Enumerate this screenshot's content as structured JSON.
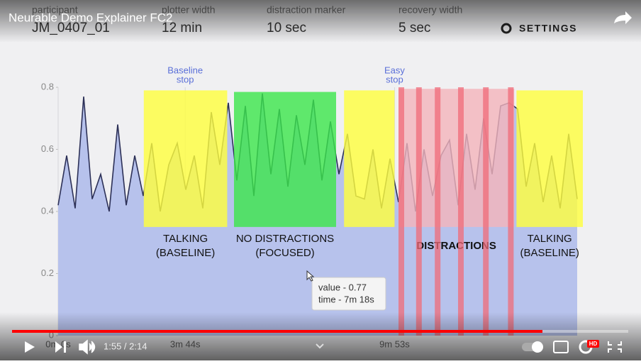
{
  "video_title": "Neurable Demo Explainer FC2",
  "header": [
    {
      "label": "participant",
      "value": "JM_0407_01"
    },
    {
      "label": "plotter width",
      "value": "12 min"
    },
    {
      "label": "distraction marker",
      "value": "10 sec"
    },
    {
      "label": "recovery width",
      "value": "5 sec"
    }
  ],
  "settings": "SETTINGS",
  "chart_data": {
    "type": "area",
    "x": [
      0,
      15,
      30,
      45,
      60,
      75,
      90,
      105,
      120,
      135,
      150,
      165,
      180,
      195,
      210,
      225,
      240,
      255,
      270,
      285,
      300,
      315,
      330,
      345,
      360,
      375,
      390,
      405,
      420,
      435,
      450,
      465,
      480,
      495,
      510,
      525,
      540,
      555,
      570,
      585,
      600,
      615,
      630,
      645,
      660,
      675,
      690,
      705,
      720,
      735,
      750,
      765,
      780,
      795,
      810,
      825,
      840,
      855,
      870,
      885,
      900,
      915
    ],
    "series": [
      {
        "name": null,
        "color": "#2c3057",
        "fill": "#b7c2ec",
        "values": [
          0.42,
          0.58,
          0.41,
          0.77,
          0.44,
          0.52,
          0.4,
          0.68,
          0.42,
          0.58,
          0.45,
          0.62,
          0.4,
          0.55,
          0.62,
          0.47,
          0.58,
          0.41,
          0.72,
          0.55,
          0.75,
          0.5,
          0.74,
          0.45,
          0.78,
          0.52,
          0.73,
          0.48,
          0.71,
          0.55,
          0.76,
          0.5,
          0.69,
          0.52,
          0.65,
          0.45,
          0.44,
          0.6,
          0.41,
          0.57,
          0.43,
          0.62,
          0.4,
          0.6,
          0.45,
          0.58,
          0.63,
          0.42,
          0.65,
          0.47,
          0.7,
          0.52,
          0.74,
          0.75,
          0.73,
          0.48,
          0.62,
          0.43,
          0.58,
          0.41,
          0.65,
          0.44
        ]
      }
    ],
    "xlim": [
      0,
      930
    ],
    "ylim": [
      0,
      0.8
    ],
    "yticks": [
      0,
      0.2,
      0.4,
      0.6,
      0.8
    ],
    "xticks": [
      {
        "value": 0,
        "label": "0m 0s"
      },
      {
        "value": 224,
        "label": "3m 44s"
      },
      {
        "value": 593,
        "label": "9m 53s"
      }
    ],
    "grid": true,
    "regions": [
      {
        "lines": [
          "TALKING",
          "(BASELINE)"
        ],
        "start": 151,
        "end": 298,
        "bottom": 0.35,
        "top": 0.79,
        "color": "#ffff3c"
      },
      {
        "lines": [
          "NO DISTRACTIONS",
          "(FOCUSED)"
        ],
        "start": 310,
        "end": 490,
        "bottom": 0.35,
        "top": 0.785,
        "color": "#3be64a"
      },
      {
        "lines": [],
        "start": 504,
        "end": 593,
        "bottom": 0.35,
        "top": 0.79,
        "color": "#ffff3c"
      },
      {
        "lines": [
          "DISTRACTIONS"
        ],
        "start": 600,
        "end": 804,
        "bottom": 0.35,
        "top": 0.795,
        "color": "#f4b4ba",
        "style": "bold"
      },
      {
        "lines": [
          "TALKING",
          "(BASELINE)"
        ],
        "start": 808,
        "end": 925,
        "bottom": 0.35,
        "top": 0.79,
        "color": "#ffff3c"
      }
    ],
    "markers": [
      605,
      636,
      669,
      710,
      754,
      798
    ],
    "marker_color": "#f06b78",
    "annotations": [
      {
        "lines": [
          "Baseline",
          "stop"
        ],
        "x": 224
      },
      {
        "lines": [
          "Easy",
          "stop"
        ],
        "x": 593
      }
    ],
    "tooltip": [
      "value - 0.77",
      "time - 7m 18s"
    ]
  },
  "player": {
    "time": "1:55 / 2:14",
    "quality": "HD"
  }
}
